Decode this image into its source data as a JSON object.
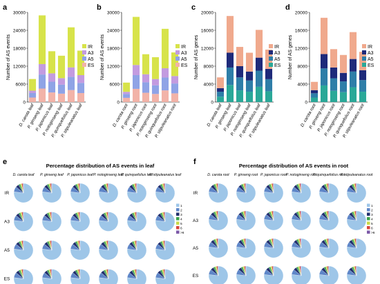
{
  "panel_letters": [
    "a",
    "b",
    "c",
    "d",
    "e",
    "f"
  ],
  "colors": {
    "IR": "#d7e34a",
    "A3": "#c39be0",
    "A5": "#8fa3e6",
    "ES": "#f2b3a8",
    "IR_c": "#f0a98d",
    "A3_c": "#1e2a7a",
    "A5_c": "#2e7ea8",
    "ES_c": "#2aa898",
    "pie_main": "#9ec6e8",
    "pie_mid": "#5e86c8",
    "pie_dark": "#22306e",
    "pie_small": [
      "#3aa34a",
      "#c8d94a",
      "#d8453e",
      "#7c5aa8",
      "#f08a3c"
    ]
  },
  "chart_data": [
    {
      "id": "a",
      "type": "bar",
      "stacked": true,
      "ylabel": "Number of AS events",
      "ylim": [
        0,
        30000
      ],
      "yticks": [
        0,
        6000,
        12000,
        18000,
        24000,
        30000
      ],
      "categories": [
        "D. carota leaf",
        "P. ginseng leaf",
        "P. japonicus leaf",
        "P. notoginseng leaf",
        "P. quinquefolius leaf",
        "P. stipuleanatus leaf"
      ],
      "series": [
        {
          "name": "ES",
          "values": [
            1500,
            4500,
            3200,
            2800,
            4000,
            3000
          ]
        },
        {
          "name": "A5",
          "values": [
            1500,
            4700,
            3600,
            3000,
            4400,
            3400
          ]
        },
        {
          "name": "A3",
          "values": [
            800,
            3500,
            2800,
            2200,
            3200,
            2600
          ]
        },
        {
          "name": "IR",
          "values": [
            3900,
            16300,
            7400,
            7500,
            13400,
            8200
          ]
        }
      ],
      "legend": [
        "IR",
        "A3",
        "A5",
        "ES"
      ],
      "legend_position": "right"
    },
    {
      "id": "b",
      "type": "bar",
      "stacked": true,
      "ylabel": "Number of AS events",
      "ylim": [
        0,
        30000
      ],
      "yticks": [
        0,
        6000,
        12000,
        18000,
        24000,
        30000
      ],
      "categories": [
        "D. carota root",
        "P. ginseng root",
        "P. japonicus root",
        "P. notoginseng root",
        "P. quinquefolius root",
        "P. stipuleanatus root"
      ],
      "series": [
        {
          "name": "ES",
          "values": [
            1400,
            4400,
            3100,
            2700,
            3900,
            2900
          ]
        },
        {
          "name": "A5",
          "values": [
            1300,
            4600,
            3500,
            2900,
            4300,
            3300
          ]
        },
        {
          "name": "A3",
          "values": [
            700,
            3400,
            2700,
            2100,
            3100,
            2500
          ]
        },
        {
          "name": "IR",
          "values": [
            3100,
            16100,
            6700,
            7300,
            13200,
            7900
          ]
        }
      ],
      "legend": [
        "IR",
        "A3",
        "A5",
        "ES"
      ],
      "legend_position": "right"
    },
    {
      "id": "c",
      "type": "bar",
      "stacked": true,
      "ylabel": "Number of AS genes",
      "ylim": [
        0,
        20000
      ],
      "yticks": [
        0,
        4000,
        8000,
        12000,
        16000,
        20000
      ],
      "categories": [
        "D. carota leaf",
        "P. ginseng leaf",
        "P. japonicus leaf",
        "P. notoginseng leaf",
        "P. quinquefolius leaf",
        "P. stipuleanatus leaf"
      ],
      "series": [
        {
          "name": "ES",
          "values": [
            1200,
            3800,
            2600,
            2300,
            3400,
            2400
          ]
        },
        {
          "name": "A5",
          "values": [
            1100,
            3900,
            2900,
            2500,
            3600,
            2700
          ]
        },
        {
          "name": "A3",
          "values": [
            800,
            3300,
            2500,
            2000,
            2900,
            2300
          ]
        },
        {
          "name": "IR",
          "values": [
            2400,
            8200,
            4300,
            4200,
            6200,
            4300
          ]
        }
      ],
      "legend": [
        "IR",
        "A3",
        "A5",
        "ES"
      ],
      "legend_position": "right"
    },
    {
      "id": "d",
      "type": "bar",
      "stacked": true,
      "ylabel": "Number of AS genes",
      "ylim": [
        0,
        20000
      ],
      "yticks": [
        0,
        4000,
        8000,
        12000,
        16000,
        20000
      ],
      "categories": [
        "D. carota root",
        "P. ginseng root",
        "P. japonicus root",
        "P. notoginseng root",
        "P. quinquefolius root",
        "P. stipuleanatus root"
      ],
      "series": [
        {
          "name": "ES",
          "values": [
            1000,
            3700,
            2500,
            2200,
            3300,
            2300
          ]
        },
        {
          "name": "A5",
          "values": [
            950,
            3800,
            2800,
            2400,
            3500,
            2600
          ]
        },
        {
          "name": "A3",
          "values": [
            700,
            3200,
            2400,
            1900,
            2800,
            2200
          ]
        },
        {
          "name": "IR",
          "values": [
            1850,
            8100,
            4100,
            4000,
            6000,
            4100
          ]
        }
      ],
      "legend": [
        "IR",
        "A3",
        "A5",
        "ES"
      ],
      "legend_position": "right"
    },
    {
      "id": "e",
      "type": "pie",
      "title": "Percentage distribution of AS events in leaf",
      "columns": [
        "D. carota leaf",
        "P. ginseng leaf",
        "P. japonicus leaf",
        "P. notoginseng leaf",
        "P. quinquefolius leaf",
        "P. stipuleanatus leaf"
      ],
      "rows": [
        "IR",
        "A3",
        "A5",
        "ES"
      ],
      "slices_percent": [
        77.0,
        9.0,
        5.5,
        3.0,
        2.5,
        2.0,
        1.0
      ],
      "legend": [
        "1",
        "2",
        "3",
        "4",
        "5",
        "6",
        ">6"
      ]
    },
    {
      "id": "f",
      "type": "pie",
      "title": "Percentage distribution of AS events in root",
      "columns": [
        "D. carota root",
        "P. ginseng root",
        "P. japonicus root",
        "P. notoginseng root",
        "P. quinquefolius root",
        "P. stipuleanatus root"
      ],
      "rows": [
        "IR",
        "A3",
        "A5",
        "ES"
      ],
      "slices_percent": [
        77.0,
        9.0,
        5.5,
        3.0,
        2.5,
        2.0,
        1.0
      ],
      "legend": [
        "1",
        "2",
        "3",
        "4",
        "5",
        "6",
        ">6"
      ]
    }
  ]
}
